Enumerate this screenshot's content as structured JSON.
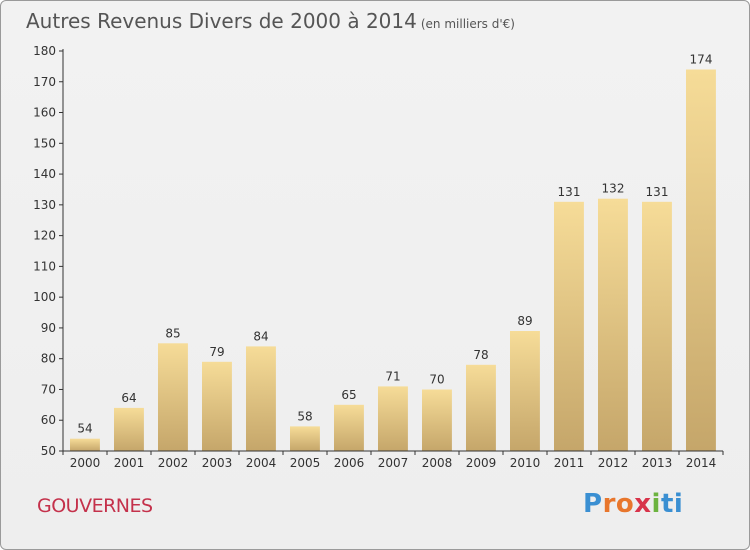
{
  "header": {
    "title": "Autres Revenus Divers de 2000 à 2014",
    "unit_note": "(en milliers d'€)"
  },
  "footer": {
    "town": "GOUVERNES",
    "brand_letters": [
      "P",
      "r",
      "o",
      "x",
      "i",
      "t",
      "i"
    ]
  },
  "chart_data": {
    "type": "bar",
    "title": "Autres Revenus Divers de 2000 à 2014",
    "subtitle": "(en milliers d'€)",
    "xlabel": "",
    "ylabel": "",
    "categories": [
      "2000",
      "2001",
      "2002",
      "2003",
      "2004",
      "2005",
      "2006",
      "2007",
      "2008",
      "2009",
      "2010",
      "2011",
      "2012",
      "2013",
      "2014"
    ],
    "values": [
      54,
      64,
      85,
      79,
      84,
      58,
      65,
      71,
      70,
      78,
      89,
      131,
      132,
      131,
      174
    ],
    "ylim": [
      50,
      180
    ],
    "yticks": [
      50,
      60,
      70,
      80,
      90,
      100,
      110,
      120,
      130,
      140,
      150,
      160,
      170,
      180
    ],
    "grid": false,
    "legend": "none",
    "colors": {
      "bar_light": "#f6dc98",
      "bar_dark": "#c5a66a",
      "axis": "#333333",
      "title": "#555555",
      "town": "#c4314b"
    }
  }
}
